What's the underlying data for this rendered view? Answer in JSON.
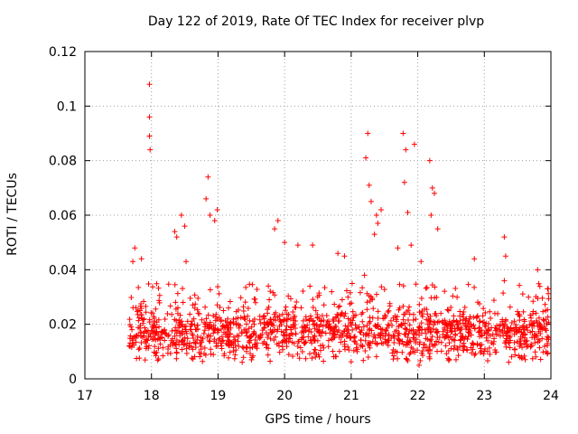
{
  "chart_data": {
    "type": "scatter",
    "title": "Day 122 of 2019, Rate Of TEC Index for receiver plvp",
    "xlabel": "GPS time / hours",
    "ylabel": "ROTI / TECUs",
    "xlim": [
      17,
      24
    ],
    "ylim": [
      0,
      0.12
    ],
    "xticks": [
      17,
      18,
      19,
      20,
      21,
      22,
      23,
      24
    ],
    "yticks": [
      0,
      0.02,
      0.04,
      0.06,
      0.08,
      0.1,
      0.12
    ],
    "ytick_labels": [
      "0",
      "0.02",
      "0.04",
      "0.06",
      "0.08",
      "0.1",
      "0.12"
    ],
    "grid": true,
    "marker": "+",
    "marker_color": "#ff0000",
    "series": [
      {
        "name": "ROTI",
        "points": [
          [
            17.97,
            0.108
          ],
          [
            17.97,
            0.096
          ],
          [
            17.97,
            0.089
          ],
          [
            17.98,
            0.084
          ],
          [
            18.85,
            0.074
          ],
          [
            18.82,
            0.066
          ],
          [
            18.88,
            0.06
          ],
          [
            18.99,
            0.062
          ],
          [
            18.95,
            0.058
          ],
          [
            18.35,
            0.054
          ],
          [
            18.38,
            0.052
          ],
          [
            18.45,
            0.06
          ],
          [
            18.5,
            0.056
          ],
          [
            18.52,
            0.043
          ],
          [
            19.9,
            0.058
          ],
          [
            19.85,
            0.055
          ],
          [
            20.0,
            0.05
          ],
          [
            20.2,
            0.049
          ],
          [
            20.42,
            0.049
          ],
          [
            20.8,
            0.046
          ],
          [
            20.9,
            0.045
          ],
          [
            21.25,
            0.09
          ],
          [
            21.22,
            0.081
          ],
          [
            21.27,
            0.071
          ],
          [
            21.3,
            0.065
          ],
          [
            21.38,
            0.06
          ],
          [
            21.45,
            0.062
          ],
          [
            21.35,
            0.053
          ],
          [
            21.4,
            0.057
          ],
          [
            21.78,
            0.09
          ],
          [
            21.82,
            0.084
          ],
          [
            21.8,
            0.072
          ],
          [
            21.95,
            0.086
          ],
          [
            22.18,
            0.08
          ],
          [
            22.22,
            0.07
          ],
          [
            22.25,
            0.068
          ],
          [
            22.2,
            0.06
          ],
          [
            22.3,
            0.055
          ],
          [
            21.85,
            0.061
          ],
          [
            22.02,
            0.005
          ],
          [
            21.9,
            0.049
          ],
          [
            22.05,
            0.043
          ],
          [
            21.7,
            0.048
          ],
          [
            21.2,
            0.038
          ],
          [
            23.3,
            0.052
          ],
          [
            23.32,
            0.045
          ],
          [
            23.3,
            0.036
          ],
          [
            22.85,
            0.044
          ],
          [
            23.8,
            0.04
          ],
          [
            23.95,
            0.033
          ],
          [
            23.92,
            0.025
          ],
          [
            17.75,
            0.048
          ],
          [
            17.72,
            0.043
          ],
          [
            17.85,
            0.044
          ]
        ]
      }
    ],
    "bulk_band": {
      "x_start": 17.65,
      "x_end": 23.97,
      "y_low": 0.006,
      "y_high": 0.035,
      "y_typical": 0.017
    }
  }
}
